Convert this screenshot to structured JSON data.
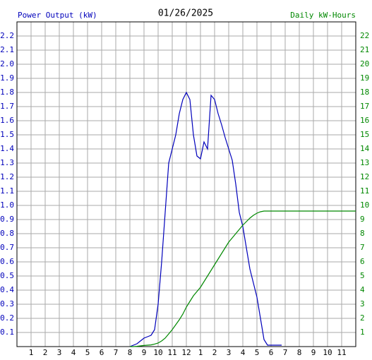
{
  "chart_data": {
    "type": "line",
    "title": "01/26/2025",
    "y_label": "Power Output (kW)",
    "y2_label": "Daily kW-Hours",
    "x": [
      8,
      8.25,
      8.5,
      8.75,
      9,
      9.25,
      9.5,
      9.75,
      10,
      10.25,
      10.5,
      10.75,
      11,
      11.25,
      11.5,
      11.75,
      12,
      12.25,
      12.5,
      12.75,
      13,
      13.25,
      13.5,
      13.75,
      14,
      14.25,
      14.5,
      14.75,
      15,
      15.25,
      15.5,
      15.75,
      16,
      16.25,
      16.5,
      16.75,
      17,
      17.25,
      17.5,
      17.75,
      18,
      18.25,
      18.5,
      18.75,
      19,
      19.25,
      19.5,
      19.75,
      20,
      20.25,
      20.5,
      20.75,
      21,
      21.25,
      21.5,
      21.75,
      22,
      22.25,
      22.5,
      22.75,
      23,
      23.25,
      23.5,
      23.75,
      24
    ],
    "series": [
      {
        "name": "Power Output (kW)",
        "color": "#0000bb",
        "values": [
          0,
          0.01,
          0.02,
          0.04,
          0.06,
          0.07,
          0.08,
          0.12,
          0.3,
          0.6,
          0.95,
          1.3,
          1.4,
          1.5,
          1.65,
          1.75,
          1.8,
          1.75,
          1.5,
          1.35,
          1.33,
          1.45,
          1.4,
          1.78,
          1.75,
          1.65,
          1.57,
          1.48,
          1.4,
          1.32,
          1.15,
          0.95,
          0.85,
          0.7,
          0.55,
          0.45,
          0.35,
          0.2,
          0.05,
          0.01,
          0.01,
          0.01,
          0.01,
          0.01,
          null,
          null,
          null,
          null,
          null,
          null,
          null,
          null,
          null,
          null,
          null,
          null,
          null,
          null,
          null,
          null,
          null,
          null,
          null,
          null,
          null
        ]
      },
      {
        "name": "Daily kW-Hours",
        "color": "#008800",
        "axis": "y2",
        "values": [
          0,
          0,
          0.02,
          0.05,
          0.08,
          0.1,
          0.12,
          0.18,
          0.25,
          0.4,
          0.6,
          0.9,
          1.2,
          1.55,
          1.9,
          2.3,
          2.8,
          3.2,
          3.6,
          3.9,
          4.2,
          4.6,
          5.0,
          5.4,
          5.8,
          6.2,
          6.6,
          7.0,
          7.4,
          7.7,
          8.0,
          8.3,
          8.6,
          8.85,
          9.1,
          9.3,
          9.45,
          9.55,
          9.6,
          9.6,
          9.6,
          9.6,
          9.6,
          9.6,
          9.6,
          9.6,
          9.6,
          9.6,
          9.6,
          9.6,
          9.6,
          9.6,
          9.6,
          9.6,
          9.6,
          9.6,
          9.6,
          9.6,
          9.6,
          9.6,
          9.6,
          9.6,
          9.6,
          9.6,
          9.6
        ]
      }
    ],
    "xlim": [
      0,
      24
    ],
    "xticks": [
      1,
      2,
      3,
      4,
      5,
      6,
      7,
      8,
      9,
      10,
      11,
      12,
      {
        "value": 13,
        "label": "1"
      },
      {
        "value": 14,
        "label": "2"
      },
      {
        "value": 15,
        "label": "3"
      },
      {
        "value": 16,
        "label": "4"
      },
      {
        "value": 17,
        "label": "5"
      },
      {
        "value": 18,
        "label": "6"
      },
      {
        "value": 19,
        "label": "7"
      },
      {
        "value": 20,
        "label": "8"
      },
      {
        "value": 21,
        "label": "9"
      },
      {
        "value": 22,
        "label": "10"
      },
      {
        "value": 23,
        "label": "11"
      }
    ],
    "ylim": [
      0,
      2.3
    ],
    "yticks": [
      0.1,
      0.2,
      0.3,
      0.4,
      0.5,
      0.6,
      0.7,
      0.8,
      0.9,
      {
        "value": 1,
        "label": "1.0"
      },
      1.1,
      1.2,
      1.3,
      1.4,
      1.5,
      1.6,
      1.7,
      1.8,
      1.9,
      {
        "value": 2,
        "label": "2.0"
      },
      2.1,
      2.2
    ],
    "y2lim": [
      0,
      23
    ],
    "y2ticks": [
      1,
      2,
      3,
      4,
      5,
      6,
      7,
      8,
      9,
      10,
      11,
      12,
      13,
      14,
      15,
      16,
      17,
      18,
      19,
      20,
      21,
      22
    ],
    "grid": true
  }
}
